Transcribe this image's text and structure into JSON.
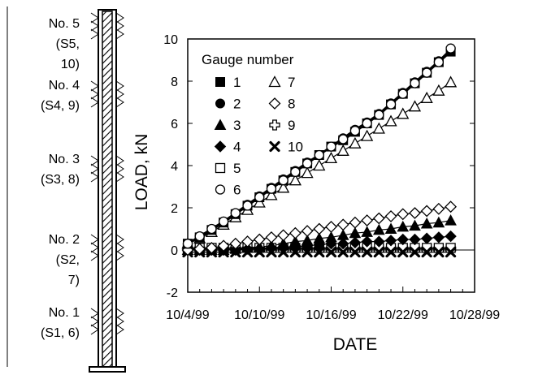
{
  "gauges": [
    {
      "name": "No. 5",
      "sensors_line1": "(S5,",
      "sensors_line2": "10)"
    },
    {
      "name": "No. 4",
      "sensors_line1": "(S4, 9)",
      "sensors_line2": ""
    },
    {
      "name": "No. 3",
      "sensors_line1": "(S3, 8)",
      "sensors_line2": ""
    },
    {
      "name": "No. 2",
      "sensors_line1": "(S2,",
      "sensors_line2": "7)"
    },
    {
      "name": "No. 1",
      "sensors_line1": "(S1, 6)",
      "sensors_line2": ""
    }
  ],
  "chart_data": {
    "type": "line",
    "title": "",
    "xlabel": "DATE",
    "ylabel": "LOAD, kN",
    "x_ticks": [
      "10/4/99",
      "10/10/99",
      "10/16/99",
      "10/22/99",
      "10/28/99"
    ],
    "xlim": [
      "1999-10-04",
      "1999-10-28"
    ],
    "ylim": [
      -2,
      10
    ],
    "y_ticks": [
      -2,
      0,
      2,
      4,
      6,
      8,
      10
    ],
    "grid": false,
    "legend_title": "Gauge number",
    "legend_position": "top-left",
    "x": [
      "1999-10-04",
      "1999-10-05",
      "1999-10-06",
      "1999-10-07",
      "1999-10-08",
      "1999-10-09",
      "1999-10-10",
      "1999-10-11",
      "1999-10-12",
      "1999-10-13",
      "1999-10-14",
      "1999-10-15",
      "1999-10-16",
      "1999-10-17",
      "1999-10-18",
      "1999-10-19",
      "1999-10-20",
      "1999-10-21",
      "1999-10-22",
      "1999-10-23",
      "1999-10-24",
      "1999-10-25",
      "1999-10-26"
    ],
    "series": [
      {
        "name": "1",
        "marker": "square-filled",
        "values": [
          0.3,
          0.6,
          0.95,
          1.3,
          1.7,
          2.1,
          2.5,
          2.9,
          3.3,
          3.7,
          4.1,
          4.5,
          4.9,
          5.2,
          5.6,
          6.0,
          6.4,
          6.9,
          7.4,
          7.9,
          8.4,
          8.9,
          9.4
        ]
      },
      {
        "name": "2",
        "marker": "circle-filled",
        "values": [
          0.3,
          0.65,
          1.0,
          1.35,
          1.75,
          2.15,
          2.55,
          2.95,
          3.35,
          3.75,
          4.15,
          4.5,
          4.9,
          5.3,
          5.7,
          6.05,
          6.45,
          6.95,
          7.45,
          7.95,
          8.45,
          8.95,
          9.5
        ]
      },
      {
        "name": "3",
        "marker": "triangle-filled",
        "values": [
          0,
          0,
          0,
          0,
          0.05,
          0.1,
          0.15,
          0.2,
          0.3,
          0.4,
          0.45,
          0.55,
          0.6,
          0.7,
          0.8,
          0.85,
          0.95,
          1.0,
          1.1,
          1.15,
          1.25,
          1.3,
          1.4
        ]
      },
      {
        "name": "4",
        "marker": "diamond-filled",
        "values": [
          0,
          0,
          0,
          0,
          0,
          0.05,
          0.05,
          0.1,
          0.15,
          0.15,
          0.2,
          0.25,
          0.3,
          0.3,
          0.35,
          0.4,
          0.4,
          0.45,
          0.5,
          0.5,
          0.55,
          0.6,
          0.65
        ]
      },
      {
        "name": "5",
        "marker": "square-open",
        "values": [
          0.1,
          0.1,
          0.1,
          0.1,
          0.1,
          0.1,
          0.1,
          0.1,
          0.1,
          0.1,
          0.1,
          0.1,
          0.1,
          0.1,
          0.1,
          0.1,
          0.1,
          0.1,
          0.1,
          0.1,
          0.1,
          0.1,
          0.1
        ]
      },
      {
        "name": "6",
        "marker": "circle-open",
        "values": [
          0.3,
          0.65,
          1.0,
          1.35,
          1.75,
          2.1,
          2.5,
          2.9,
          3.3,
          3.7,
          4.1,
          4.5,
          4.9,
          5.25,
          5.65,
          6.0,
          6.4,
          6.9,
          7.4,
          7.9,
          8.4,
          8.9,
          9.55
        ]
      },
      {
        "name": "7",
        "marker": "triangle-open",
        "values": [
          0.3,
          0.55,
          0.85,
          1.2,
          1.55,
          1.9,
          2.25,
          2.6,
          2.95,
          3.3,
          3.65,
          4.0,
          4.35,
          4.7,
          5.05,
          5.4,
          5.75,
          6.1,
          6.45,
          6.8,
          7.2,
          7.55,
          7.95
        ]
      },
      {
        "name": "8",
        "marker": "diamond-open",
        "values": [
          0,
          0.05,
          0.1,
          0.2,
          0.3,
          0.4,
          0.5,
          0.6,
          0.7,
          0.8,
          0.9,
          1.0,
          1.1,
          1.2,
          1.3,
          1.4,
          1.5,
          1.6,
          1.7,
          1.75,
          1.85,
          1.95,
          2.05
        ]
      },
      {
        "name": "9",
        "marker": "cross-open",
        "values": [
          0.05,
          0.05,
          0.05,
          0.05,
          0.05,
          0.05,
          0.05,
          0.05,
          0.05,
          0.05,
          0.05,
          0.05,
          0.05,
          0.05,
          0.05,
          0.05,
          0.05,
          0.05,
          0.05,
          0.05,
          0.05,
          0.05,
          0.05
        ]
      },
      {
        "name": "10",
        "marker": "x-filled",
        "values": [
          -0.1,
          -0.1,
          -0.1,
          -0.1,
          -0.1,
          -0.1,
          -0.1,
          -0.1,
          -0.1,
          -0.1,
          -0.1,
          -0.1,
          -0.1,
          -0.1,
          -0.1,
          -0.1,
          -0.1,
          -0.1,
          -0.1,
          -0.1,
          -0.1,
          -0.1,
          -0.1
        ]
      }
    ]
  }
}
